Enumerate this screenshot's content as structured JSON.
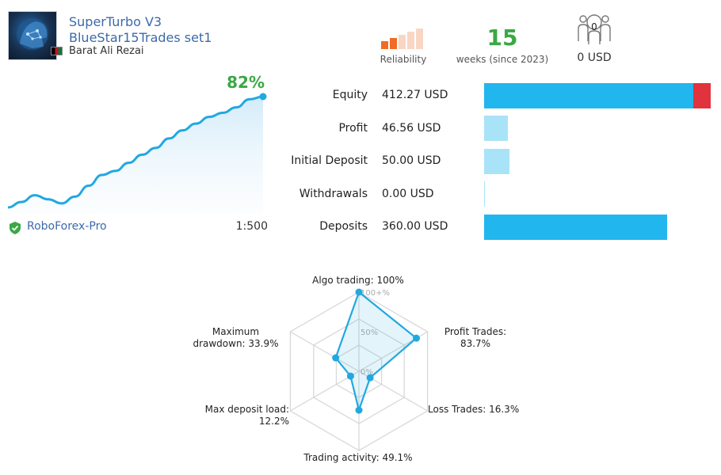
{
  "header": {
    "title_line1": "SuperTurbo V3",
    "title_line2": "BlueStar15Trades set1",
    "author": "Barat Ali Rezai"
  },
  "reliability": {
    "label": "Reliability",
    "level": 0.4
  },
  "weeks": {
    "value": "15",
    "label": "weeks (since 2023)"
  },
  "subscribers": {
    "count": "0",
    "funds": "0 USD"
  },
  "growth": {
    "percent_label": "82%",
    "broker": "RoboForex-Pro",
    "leverage": "1:500",
    "curve": [
      0,
      4,
      9,
      6,
      3,
      8,
      16,
      24,
      27,
      33,
      39,
      44,
      51,
      57,
      62,
      67,
      70,
      74,
      80,
      82
    ]
  },
  "stats": [
    {
      "label": "Equity",
      "value": "412.27 USD",
      "amount": 412.27,
      "extra": 34,
      "color": "#22b6ef",
      "extra_color": "#e0333d"
    },
    {
      "label": "Profit",
      "value": "46.56 USD",
      "amount": 46.56,
      "color": "#a9e3f8"
    },
    {
      "label": "Initial Deposit",
      "value": "50.00 USD",
      "amount": 50.0,
      "color": "#a9e3f8"
    },
    {
      "label": "Withdrawals",
      "value": "0.00 USD",
      "amount": 0.0,
      "color": "#a9e3f8"
    },
    {
      "label": "Deposits",
      "value": "360.00 USD",
      "amount": 360.0,
      "color": "#22b6ef"
    }
  ],
  "radar": {
    "scale": [
      "100+%",
      "50%",
      "0%"
    ],
    "axes": [
      {
        "line1": "Algo trading: 100%",
        "line2": "",
        "value": 100
      },
      {
        "line1": "Profit Trades:",
        "line2": "83.7%",
        "value": 83.7
      },
      {
        "line1": "Loss Trades: 16.3%",
        "line2": "",
        "value": 16.3
      },
      {
        "line1": "Trading activity: 49.1%",
        "line2": "",
        "value": 49.1
      },
      {
        "line1": "Max deposit load:",
        "line2": "12.2%",
        "value": 12.2
      },
      {
        "line1": "Maximum",
        "line2": "drawdown: 33.9%",
        "value": 33.9
      }
    ],
    "color": "#22a8e0"
  }
}
